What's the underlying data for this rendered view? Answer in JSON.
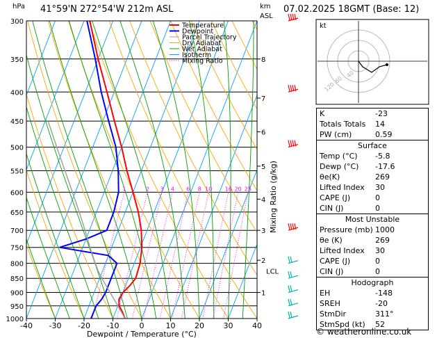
{
  "header": {
    "location": "41°59'N  272°54'W  212m  ASL",
    "datetime": "07.02.2025  18GMT  (Base: 12)",
    "pressure_unit": "hPa",
    "height_unit_1": "km",
    "height_unit_2": "ASL"
  },
  "chart_data": {
    "type": "line",
    "title": "",
    "xlabel": "Dewpoint / Temperature (°C)",
    "ylabel": "hPa",
    "right_axis_label": "Mixing Ratio (g/kg)",
    "x_ticks": [
      -40,
      -30,
      -20,
      -10,
      0,
      10,
      20,
      30,
      40
    ],
    "x_tick_labels": [
      "-40",
      "-30",
      "-20",
      "-10",
      "0",
      "10",
      "20",
      "30",
      "40"
    ],
    "pressure_ticks": [
      300,
      350,
      400,
      450,
      500,
      550,
      600,
      650,
      700,
      750,
      800,
      850,
      900,
      950,
      1000
    ],
    "pressure_tick_labels": [
      "300",
      "350",
      "400",
      "450",
      "500",
      "550",
      "600",
      "650",
      "700",
      "750",
      "800",
      "850",
      "900",
      "950",
      "1000"
    ],
    "height_km_ticks": [
      {
        "label": "8",
        "p": 350
      },
      {
        "label": "7",
        "p": 410
      },
      {
        "label": "6",
        "p": 470
      },
      {
        "label": "5",
        "p": 540
      },
      {
        "label": "4",
        "p": 617
      },
      {
        "label": "3",
        "p": 700
      },
      {
        "label": "2",
        "p": 790
      },
      {
        "label": "1",
        "p": 900
      }
    ],
    "lcl_label": "LCL",
    "lcl_p": 825,
    "mixing_ratio_labels": [
      "1",
      "2",
      "3",
      "4",
      "6",
      "8",
      "10",
      "16",
      "20",
      "25"
    ],
    "mixing_ratio_values": [
      1,
      2,
      3,
      4,
      6,
      8,
      10,
      16,
      20,
      25
    ],
    "legend": [
      {
        "name": "Temperature",
        "color": "#ff0000"
      },
      {
        "name": "Dewpoint",
        "color": "#0000ff"
      },
      {
        "name": "Parcel Trajectory",
        "color": "#a0a0a0"
      },
      {
        "name": "Dry Adiabat",
        "color": "#ffa500"
      },
      {
        "name": "Wet Adiabat",
        "color": "#00a000"
      },
      {
        "name": "Isotherm",
        "color": "#00a0ff"
      },
      {
        "name": "Mixing Ratio",
        "color": "#ff00ff"
      }
    ],
    "series": [
      {
        "name": "Temperature",
        "color": "#ff0000",
        "points": [
          [
            1000,
            -5.8
          ],
          [
            975,
            -7.5
          ],
          [
            950,
            -9.5
          ],
          [
            925,
            -10.5
          ],
          [
            900,
            -10
          ],
          [
            875,
            -8.5
          ],
          [
            850,
            -7.5
          ],
          [
            800,
            -8
          ],
          [
            750,
            -9.5
          ],
          [
            700,
            -12
          ],
          [
            650,
            -15.5
          ],
          [
            600,
            -20
          ],
          [
            550,
            -25
          ],
          [
            500,
            -30
          ],
          [
            450,
            -36
          ],
          [
            400,
            -42.5
          ],
          [
            350,
            -50
          ],
          [
            300,
            -58
          ]
        ]
      },
      {
        "name": "Dewpoint",
        "color": "#0000ff",
        "points": [
          [
            1000,
            -17.6
          ],
          [
            950,
            -17.5
          ],
          [
            925,
            -16.5
          ],
          [
            900,
            -16
          ],
          [
            850,
            -16
          ],
          [
            800,
            -16
          ],
          [
            775,
            -20
          ],
          [
            750,
            -38
          ],
          [
            725,
            -30
          ],
          [
            700,
            -24
          ],
          [
            650,
            -24
          ],
          [
            600,
            -25
          ],
          [
            550,
            -28
          ],
          [
            500,
            -32
          ],
          [
            450,
            -38
          ],
          [
            400,
            -44.5
          ],
          [
            350,
            -51
          ],
          [
            300,
            -59
          ]
        ]
      },
      {
        "name": "Parcel Trajectory",
        "color": "#a0a0a0",
        "points": [
          [
            1000,
            -5.8
          ],
          [
            950,
            -10
          ],
          [
            900,
            -14.5
          ],
          [
            850,
            -19.2
          ],
          [
            825,
            -21.5
          ],
          [
            800,
            -23.5
          ],
          [
            750,
            -27.5
          ],
          [
            700,
            -31.5
          ],
          [
            650,
            -36
          ],
          [
            600,
            -41
          ],
          [
            550,
            -46.5
          ],
          [
            500,
            -52.5
          ],
          [
            450,
            -59
          ]
        ]
      }
    ],
    "wind_barbs_p": [
      300,
      400,
      500,
      700,
      800,
      850,
      900,
      950,
      1000
    ],
    "hodograph": {
      "label": "kt",
      "ring_labels": [
        "40",
        "60",
        "120"
      ]
    }
  },
  "table": {
    "k_label": "K",
    "k_value": "-23",
    "tt_label": "Totals Totals",
    "tt_value": "14",
    "pw_label": "PW (cm)",
    "pw_value": "0.59",
    "surface_title": "Surface",
    "surface_rows": [
      {
        "label": "Temp (°C)",
        "value": "-5.8"
      },
      {
        "label": "Dewp (°C)",
        "value": "-17.6"
      },
      {
        "label": "θe(K)",
        "value": "269"
      },
      {
        "label": "Lifted Index",
        "value": "30"
      },
      {
        "label": "CAPE (J)",
        "value": "0"
      },
      {
        "label": "CIN (J)",
        "value": "0"
      }
    ],
    "mu_title": "Most Unstable",
    "mu_rows": [
      {
        "label": "Pressure (mb)",
        "value": "1000"
      },
      {
        "label": "θe (K)",
        "value": "269"
      },
      {
        "label": "Lifted Index",
        "value": "30"
      },
      {
        "label": "CAPE (J)",
        "value": "0"
      },
      {
        "label": "CIN (J)",
        "value": "0"
      }
    ],
    "hodo_title": "Hodograph",
    "hodo_rows": [
      {
        "label": "EH",
        "value": "-148"
      },
      {
        "label": "SREH",
        "value": "-20"
      },
      {
        "label": "StmDir",
        "value": "311°"
      },
      {
        "label": "StmSpd (kt)",
        "value": "52"
      }
    ]
  },
  "credit": "© weatheronline.co.uk"
}
